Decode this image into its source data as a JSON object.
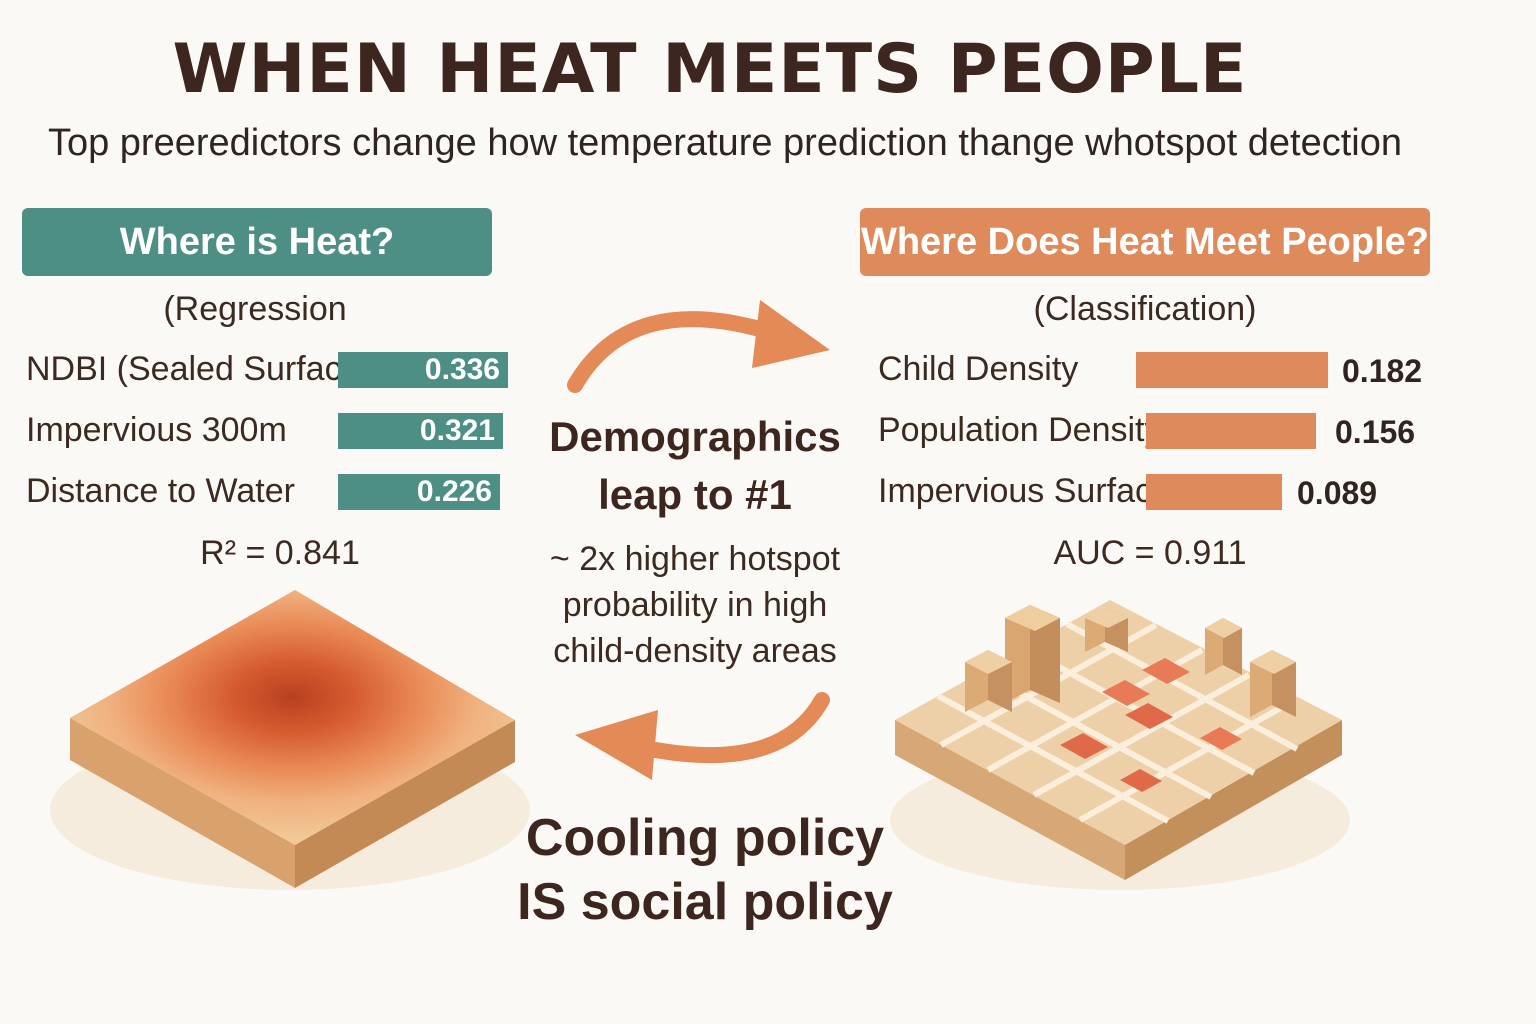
{
  "header": {
    "title": "WHEN HEAT MEETS PEOPLE",
    "subtitle": "Top preeredictors change how temperature prediction thange whotspot detection"
  },
  "left_panel": {
    "heading": "Where is Heat?",
    "model_type": "(Regression",
    "features": [
      {
        "label": "NDBI (Sealed Surface)",
        "value": "0.336"
      },
      {
        "label": "Impervious 300m",
        "value": "0.321"
      },
      {
        "label": "Distance to Water",
        "value": "0.226"
      }
    ],
    "metric": "R² = 0.841",
    "color": "#4d8f85"
  },
  "right_panel": {
    "heading": "Where Does Heat Meet People?",
    "model_type": "(Classification)",
    "features": [
      {
        "label": "Child Density",
        "value": "0.182"
      },
      {
        "label": "Population Density",
        "value": "0.156"
      },
      {
        "label": "Impervious Surface",
        "value": "0.089"
      }
    ],
    "metric": "AUC = 0.911",
    "color": "#de8a5a"
  },
  "center": {
    "headline_1": "Demographics",
    "headline_2": "leap to #1",
    "body_1": "~ 2x higher hotspot",
    "body_2": "probability in high",
    "body_3": "child-density areas",
    "conclusion_1": "Cooling policy",
    "conclusion_2": "IS social policy"
  },
  "icons": {
    "top_arrow": "curved-arrow-right-icon",
    "bottom_arrow": "curved-arrow-left-icon",
    "heat_map": "heat-surface-illustration",
    "city_grid": "city-grid-illustration"
  }
}
